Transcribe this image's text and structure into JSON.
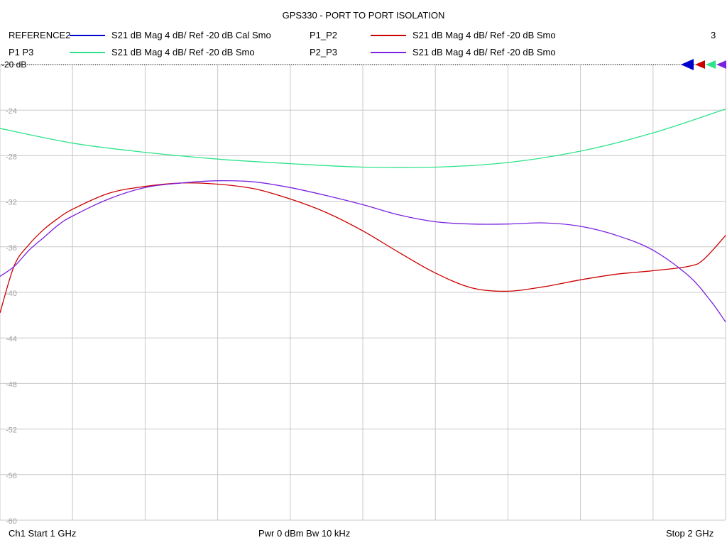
{
  "chart_data": {
    "type": "line",
    "title": "GPS330 - PORT TO PORT ISOLATION",
    "ref_label": "-20 dB",
    "trace_count": "3",
    "xlabel": "",
    "ylabel": "",
    "x_unit": "GHz",
    "xlim": [
      1.0,
      2.0
    ],
    "ylim": [
      -60,
      -20
    ],
    "y_ticks": [
      -20,
      -24,
      -28,
      -32,
      -36,
      -40,
      -44,
      -48,
      -52,
      -56,
      -60
    ],
    "y_tick_labels": [
      "-20",
      "-24",
      "-28",
      "-32",
      "-36",
      "-40",
      "-44",
      "-48",
      "-52",
      "-56",
      "-60"
    ],
    "grid": true,
    "legend_placement": "top",
    "series": [
      {
        "name": "REFERENCE2",
        "description": "S21  dB Mag  4 dB/ Ref -20 dB  Cal Smo",
        "color": "#0000cc",
        "x": [],
        "y": []
      },
      {
        "name": "P1_P2",
        "description": "S21  dB Mag  4 dB/ Ref -20 dB  Smo",
        "color": "#cc0000",
        "x": [
          1.0,
          1.02,
          1.04,
          1.06,
          1.08,
          1.1,
          1.15,
          1.2,
          1.25,
          1.3,
          1.35,
          1.4,
          1.45,
          1.5,
          1.55,
          1.6,
          1.65,
          1.7,
          1.75,
          1.8,
          1.85,
          1.9,
          1.95,
          1.97,
          2.0
        ],
        "y": [
          -41.8,
          -37.6,
          -35.8,
          -34.5,
          -33.5,
          -32.7,
          -31.3,
          -30.7,
          -30.4,
          -30.5,
          -30.9,
          -31.8,
          -33.0,
          -34.6,
          -36.5,
          -38.3,
          -39.6,
          -39.9,
          -39.5,
          -38.9,
          -38.4,
          -38.1,
          -37.7,
          -37.1,
          -35.0
        ],
        "data_labels": []
      },
      {
        "name": "P1  P3",
        "description": "S21  dB Mag  4 dB/ Ref -20 dB  Smo",
        "color": "#2de38a",
        "x": [
          1.0,
          1.1,
          1.2,
          1.3,
          1.4,
          1.5,
          1.6,
          1.7,
          1.8,
          1.9,
          2.0
        ],
        "y": [
          -25.6,
          -26.9,
          -27.7,
          -28.3,
          -28.7,
          -29.0,
          -29.0,
          -28.6,
          -27.6,
          -26.0,
          -23.9
        ],
        "data_labels": []
      },
      {
        "name": "P2_P3",
        "description": "S21  dB Mag  4 dB/ Ref -20 dB  Smo",
        "color": "#7a22e0",
        "x": [
          1.0,
          1.02,
          1.04,
          1.06,
          1.08,
          1.1,
          1.15,
          1.2,
          1.25,
          1.3,
          1.35,
          1.4,
          1.45,
          1.5,
          1.55,
          1.6,
          1.65,
          1.7,
          1.75,
          1.8,
          1.85,
          1.9,
          1.95,
          1.98,
          2.0
        ],
        "y": [
          -38.6,
          -37.7,
          -36.3,
          -35.2,
          -34.1,
          -33.3,
          -31.8,
          -30.8,
          -30.4,
          -30.2,
          -30.3,
          -30.8,
          -31.5,
          -32.3,
          -33.2,
          -33.8,
          -34.0,
          -34.0,
          -33.9,
          -34.2,
          -35.0,
          -36.3,
          -38.6,
          -40.8,
          -42.6
        ],
        "data_labels": []
      }
    ]
  },
  "footer": {
    "channel_start": "Ch1  Start  1 GHz",
    "power_bw": "Pwr  0 dBm  Bw  10 kHz",
    "stop": "Stop  2 GHz"
  }
}
